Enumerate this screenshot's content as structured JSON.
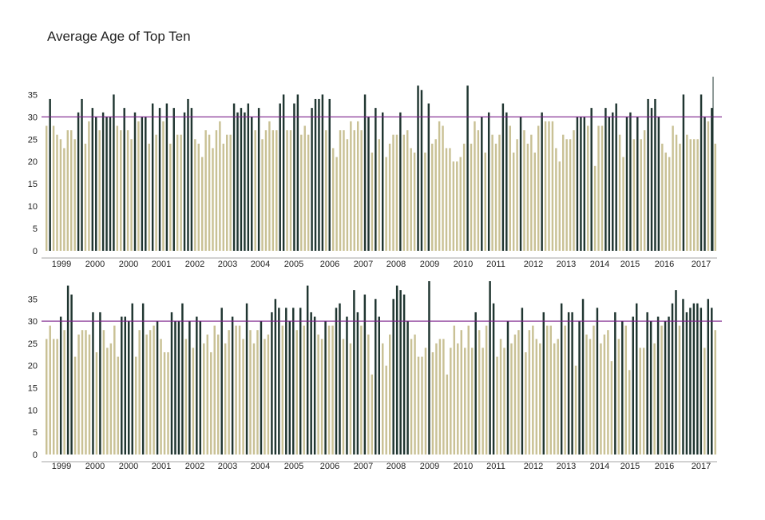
{
  "chart_data": {
    "type": "bar",
    "title": "Average Age of Top Ten",
    "ylim": [
      0,
      39
    ],
    "yticks": [
      0,
      5,
      10,
      15,
      20,
      25,
      30,
      35
    ],
    "reference_line": 30,
    "grid": false,
    "colors": {
      "light": "#c9c195",
      "dark": "#1f3530",
      "reference": "#7a1f8a",
      "axis": "#888888"
    },
    "x_labels": [
      "1999",
      "2000",
      "2000",
      "2001",
      "2002",
      "2003",
      "2004",
      "2005",
      "2006",
      "2007",
      "2008",
      "2009",
      "2010",
      "2011",
      "2012",
      "2013",
      "2014",
      "2015",
      "2016",
      "2017"
    ],
    "panels": [
      {
        "name": "top",
        "values": [
          28,
          34,
          28,
          26,
          25,
          23,
          27,
          27,
          25,
          31,
          34,
          24,
          29,
          32,
          30,
          27,
          31,
          30,
          30,
          35,
          28,
          27,
          32,
          27,
          25,
          31,
          29,
          30,
          30,
          24,
          33,
          26,
          32,
          29,
          33,
          24,
          32,
          26,
          26,
          31,
          34,
          32,
          25,
          24,
          21,
          27,
          26,
          23,
          27,
          29,
          24,
          26,
          26,
          33,
          31,
          32,
          31,
          33,
          30,
          27,
          32,
          25,
          27,
          29,
          27,
          27,
          33,
          35,
          27,
          27,
          33,
          35,
          26,
          28,
          26,
          32,
          34,
          34,
          35,
          27,
          34,
          23,
          21,
          27,
          27,
          25,
          29,
          27,
          29,
          27,
          35,
          30,
          22,
          32,
          25,
          31,
          21,
          24,
          26,
          26,
          31,
          26,
          27,
          23,
          22,
          37,
          36,
          22,
          33,
          24,
          25,
          29,
          28,
          23,
          23,
          20,
          20,
          21,
          24,
          37,
          24,
          29,
          27,
          30,
          22,
          31,
          26,
          24,
          26,
          33,
          31,
          28,
          22,
          25,
          30,
          27,
          24,
          26,
          22,
          28,
          31,
          29,
          29,
          29,
          23,
          20,
          26,
          25,
          25,
          27,
          30,
          30,
          30,
          28,
          32,
          19,
          28,
          28,
          32,
          30,
          31,
          33,
          26,
          21,
          30,
          31,
          25,
          30,
          25,
          27,
          34,
          32,
          34,
          30,
          24,
          22,
          21,
          28,
          26,
          24,
          35,
          26,
          25,
          25,
          25,
          35,
          30,
          29,
          32,
          24
        ]
      },
      {
        "name": "bottom",
        "values": [
          26,
          29,
          26,
          26,
          31,
          28,
          38,
          36,
          22,
          27,
          28,
          28,
          27,
          32,
          23,
          32,
          28,
          24,
          25,
          29,
          22,
          31,
          31,
          30,
          34,
          22,
          28,
          34,
          27,
          28,
          29,
          30,
          26,
          23,
          23,
          32,
          30,
          30,
          34,
          26,
          30,
          24,
          31,
          30,
          25,
          27,
          23,
          29,
          27,
          33,
          25,
          28,
          31,
          29,
          29,
          26,
          34,
          28,
          25,
          28,
          30,
          26,
          27,
          32,
          35,
          33,
          29,
          33,
          30,
          33,
          28,
          33,
          29,
          38,
          32,
          31,
          27,
          26,
          30,
          29,
          29,
          33,
          34,
          26,
          31,
          25,
          37,
          32,
          29,
          36,
          27,
          18,
          35,
          31,
          25,
          20,
          27,
          35,
          38,
          37,
          36,
          30,
          26,
          27,
          22,
          22,
          24,
          39,
          23,
          25,
          26,
          26,
          18,
          24,
          29,
          25,
          28,
          24,
          29,
          24,
          32,
          28,
          24,
          29,
          39,
          34,
          22,
          26,
          24,
          30,
          25,
          27,
          28,
          33,
          23,
          28,
          29,
          26,
          25,
          32,
          29,
          29,
          25,
          26,
          34,
          29,
          32,
          32,
          20,
          30,
          35,
          27,
          26,
          29,
          33,
          25,
          27,
          28,
          21,
          32,
          26,
          30,
          29,
          19,
          31,
          34,
          24,
          24,
          32,
          30,
          25,
          31,
          29,
          30,
          31,
          34,
          37,
          29,
          35,
          32,
          33,
          34,
          34,
          33,
          24,
          35,
          33,
          28
        ]
      }
    ]
  }
}
